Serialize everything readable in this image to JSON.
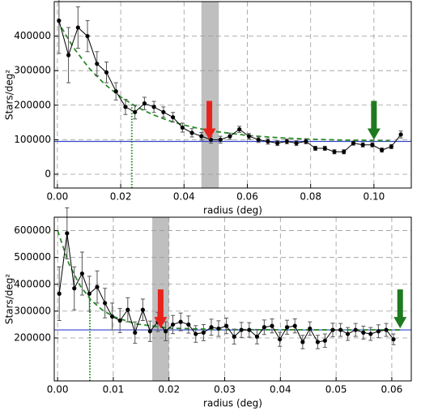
{
  "chart_data": [
    {
      "type": "line",
      "xlabel": "radius (deg)",
      "ylabel": "Stars/deg²",
      "xlim": [
        -0.001,
        0.1118
      ],
      "ylim": [
        -40000,
        500000
      ],
      "xticks": [
        {
          "value": 0,
          "label": "0.00"
        },
        {
          "value": 0.02,
          "label": "0.02"
        },
        {
          "value": 0.04,
          "label": "0.04"
        },
        {
          "value": 0.06,
          "label": "0.06"
        },
        {
          "value": 0.08,
          "label": "0.08"
        },
        {
          "value": 0.1,
          "label": "0.10"
        }
      ],
      "yticks": [
        0,
        100000,
        200000,
        300000,
        400000
      ],
      "grid": true,
      "data": {
        "color": "#000000",
        "x": [
          0.0005,
          0.0035,
          0.0065,
          0.0095,
          0.0125,
          0.0155,
          0.0185,
          0.0215,
          0.0245,
          0.0275,
          0.0305,
          0.0335,
          0.0365,
          0.0395,
          0.0425,
          0.0455,
          0.0485,
          0.0515,
          0.0545,
          0.0575,
          0.0605,
          0.0635,
          0.0665,
          0.0695,
          0.0725,
          0.0755,
          0.0785,
          0.0815,
          0.0845,
          0.0875,
          0.0905,
          0.0935,
          0.0965,
          0.0995,
          0.1025,
          0.1055,
          0.1085
        ],
        "values": [
          445000,
          345000,
          425000,
          400000,
          320000,
          295000,
          240000,
          195000,
          180000,
          205000,
          195000,
          180000,
          165000,
          135000,
          120000,
          110000,
          100000,
          100000,
          110000,
          130000,
          110000,
          100000,
          95000,
          90000,
          95000,
          90000,
          95000,
          75000,
          75000,
          65000,
          65000,
          90000,
          85000,
          85000,
          70000,
          80000,
          115000
        ],
        "errors": [
          95000,
          80000,
          60000,
          45000,
          35000,
          30000,
          25000,
          22000,
          20000,
          18000,
          16000,
          15000,
          14000,
          13000,
          12000,
          11000,
          10000,
          10000,
          9000,
          9000,
          8000,
          8000,
          8000,
          7000,
          7000,
          7000,
          7000,
          6000,
          6000,
          6000,
          6000,
          6000,
          6000,
          6000,
          6000,
          6000,
          10000
        ]
      },
      "fit": {
        "color": "#2a8a2a",
        "x": [
          0,
          0.005,
          0.01,
          0.015,
          0.02,
          0.025,
          0.03,
          0.035,
          0.04,
          0.045,
          0.05,
          0.06,
          0.07,
          0.08,
          0.09,
          0.105
        ],
        "values": [
          445000,
          367600,
          307300,
          260300,
          223800,
          195300,
          173100,
          155800,
          142400,
          131900,
          123700,
          112400,
          105600,
          101400,
          98900,
          96800
        ]
      },
      "background": {
        "value": 95000,
        "color": "#3344cc"
      },
      "radius_line": {
        "value": 0.0235,
        "color": "#2a8a2a"
      },
      "band": [
        0.0455,
        0.051
      ],
      "arrows": [
        {
          "x": 0.048,
          "color": "#e8231c"
        },
        {
          "x": 0.1,
          "color": "#1f7a1f"
        }
      ]
    },
    {
      "type": "line",
      "xlabel": "radius (deg)",
      "ylabel": "Stars/deg²",
      "xlim": [
        -0.0006,
        0.0635
      ],
      "ylim": [
        40000,
        650000
      ],
      "xticks": [
        {
          "value": 0,
          "label": "0.00"
        },
        {
          "value": 0.01,
          "label": "0.01"
        },
        {
          "value": 0.02,
          "label": "0.02"
        },
        {
          "value": 0.03,
          "label": "0.03"
        },
        {
          "value": 0.04,
          "label": "0.04"
        },
        {
          "value": 0.05,
          "label": "0.05"
        },
        {
          "value": 0.06,
          "label": "0.06"
        }
      ],
      "yticks": [
        200000,
        300000,
        400000,
        500000,
        600000
      ],
      "grid": true,
      "data": {
        "color": "#000000",
        "x": [
          0.0003,
          0.0017,
          0.003,
          0.0044,
          0.0057,
          0.0071,
          0.0085,
          0.0098,
          0.0112,
          0.0126,
          0.0139,
          0.0153,
          0.0166,
          0.018,
          0.0194,
          0.0207,
          0.0221,
          0.0235,
          0.0248,
          0.0262,
          0.0276,
          0.0289,
          0.0303,
          0.0317,
          0.033,
          0.0344,
          0.0358,
          0.0371,
          0.0385,
          0.0399,
          0.0412,
          0.0426,
          0.044,
          0.0453,
          0.0467,
          0.048,
          0.0494,
          0.0508,
          0.0521,
          0.0535,
          0.0549,
          0.0562,
          0.0576,
          0.059,
          0.0603
        ],
        "values": [
          365000,
          590000,
          385000,
          440000,
          365000,
          390000,
          330000,
          280000,
          265000,
          305000,
          220000,
          305000,
          225000,
          260000,
          225000,
          250000,
          260000,
          250000,
          215000,
          220000,
          240000,
          235000,
          245000,
          205000,
          230000,
          230000,
          205000,
          240000,
          245000,
          195000,
          240000,
          245000,
          185000,
          235000,
          185000,
          190000,
          230000,
          230000,
          215000,
          230000,
          220000,
          215000,
          225000,
          230000,
          195000
        ],
        "errors": [
          100000,
          95000,
          80000,
          80000,
          65000,
          60000,
          55000,
          50000,
          45000,
          45000,
          40000,
          40000,
          38000,
          36000,
          35000,
          34000,
          33000,
          32000,
          31000,
          30000,
          30000,
          29000,
          29000,
          28000,
          28000,
          27000,
          27000,
          27000,
          26000,
          26000,
          26000,
          26000,
          25000,
          25000,
          25000,
          25000,
          25000,
          24000,
          24000,
          24000,
          24000,
          24000,
          24000,
          24000,
          20000
        ]
      },
      "fit": {
        "color": "#2a8a2a",
        "x": [
          0,
          0.002,
          0.004,
          0.006,
          0.008,
          0.01,
          0.014,
          0.02,
          0.03,
          0.062
        ],
        "values": [
          600000,
          478000,
          396200,
          341400,
          304700,
          280100,
          252500,
          236800,
          230900,
          230000
        ]
      },
      "background": {
        "value": 230000,
        "color": "#3344cc"
      },
      "radius_line": {
        "value": 0.0058,
        "color": "#2a8a2a"
      },
      "band": [
        0.017,
        0.02
      ],
      "arrows": [
        {
          "x": 0.0185,
          "color": "#e8231c"
        },
        {
          "x": 0.0615,
          "color": "#1f7a1f"
        }
      ]
    }
  ]
}
